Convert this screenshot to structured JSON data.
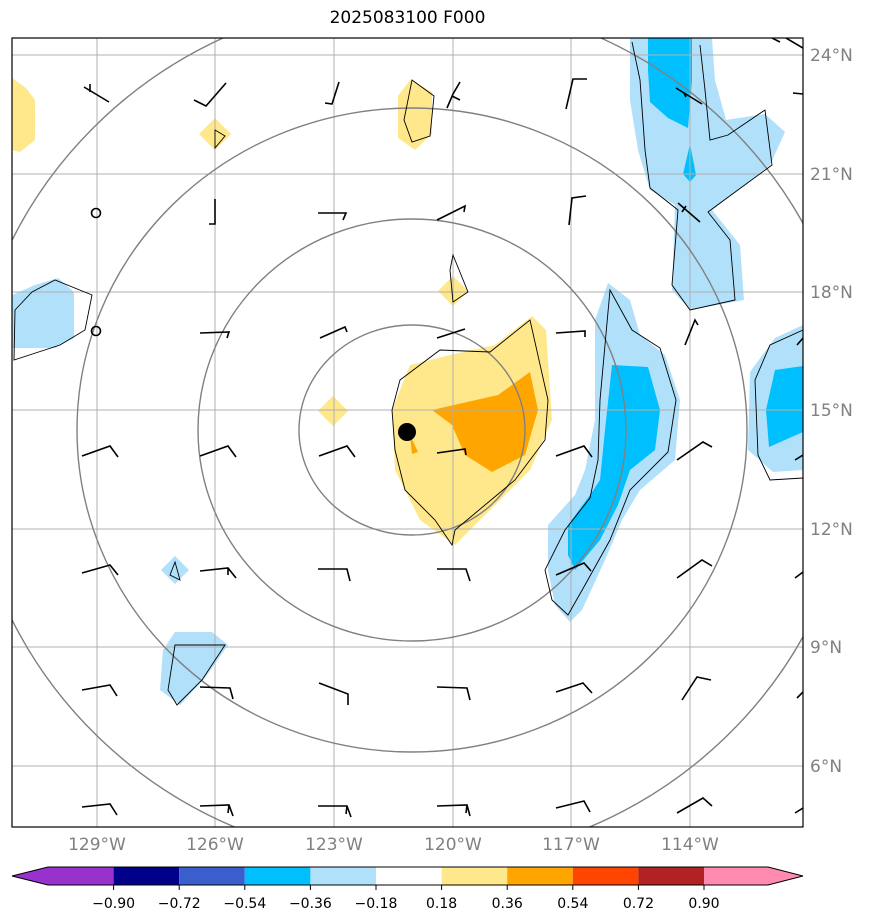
{
  "title": "2025083100 F000",
  "map": {
    "lat_labels": [
      "24°N",
      "21°N",
      "18°N",
      "15°N",
      "12°N",
      "9°N",
      "6°N"
    ],
    "lon_labels": [
      "129°W",
      "126°W",
      "123°W",
      "120°W",
      "117°W",
      "114°W"
    ],
    "storm_center": {
      "lon": -121.1,
      "lat": 14.5
    }
  },
  "colorbar": {
    "levels": [
      "−0.90",
      "−0.72",
      "−0.54",
      "−0.36",
      "−0.18",
      "0.18",
      "0.36",
      "0.54",
      "0.72",
      "0.90"
    ],
    "colors": [
      "#9932cc",
      "#00008b",
      "#3a5fcd",
      "#00bfff",
      "#b0e0fa",
      "#ffffff",
      "#ffe88c",
      "#ffa500",
      "#ff4500",
      "#b22222",
      "#ff8ab0"
    ]
  },
  "colors": {
    "grid": "#b0b0b0",
    "rings": "#808080",
    "neg_light": "#b0e0fa",
    "neg_mid": "#00bfff",
    "pos_light": "#ffe88c",
    "pos_mid": "#ffa500"
  }
}
